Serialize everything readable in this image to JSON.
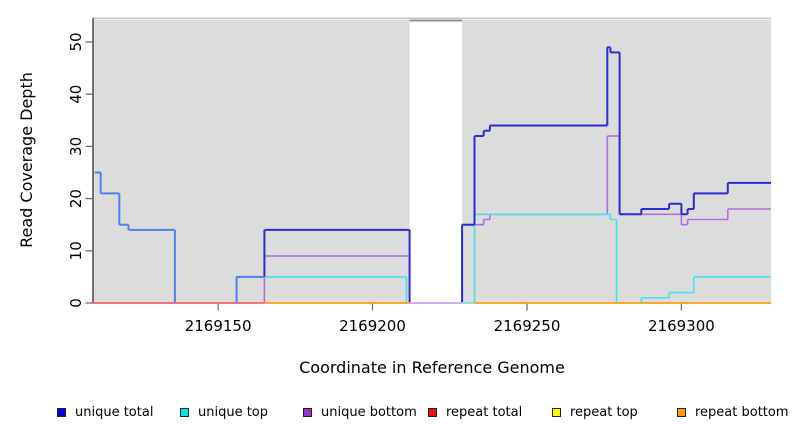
{
  "chart_data": {
    "type": "line",
    "subtype": "step-coverage",
    "title": "",
    "xlabel": "Coordinate in Reference Genome",
    "ylabel": "Read Coverage Depth",
    "x_domain": [
      2169109.5,
      2169329
    ],
    "y_domain": [
      0,
      54.5
    ],
    "x_ticks": [
      2169150,
      2169200,
      2169250,
      2169300
    ],
    "y_ticks": [
      0,
      10,
      20,
      30,
      40,
      50
    ],
    "grid": false,
    "legend_position": "bottom",
    "panel_background": "#dcdcdc",
    "masked_region": {
      "from": 2169212,
      "to": 2169229
    },
    "overlap_blend_color": "#527ff0",
    "series": [
      {
        "name": "unique total",
        "color": "#2b2bd5",
        "legend_color": "#0000ee",
        "points": [
          [
            2169110,
            25
          ],
          [
            2169112,
            21
          ],
          [
            2169118,
            15
          ],
          [
            2169121,
            14
          ],
          [
            2169136,
            0
          ],
          [
            2169156,
            5
          ],
          [
            2169165,
            14
          ],
          [
            2169212,
            0
          ],
          [
            2169229,
            15
          ],
          [
            2169233,
            32
          ],
          [
            2169236,
            33
          ],
          [
            2169238,
            34
          ],
          [
            2169276,
            49
          ],
          [
            2169277,
            48
          ],
          [
            2169280,
            17
          ],
          [
            2169287,
            18
          ],
          [
            2169296,
            19
          ],
          [
            2169300,
            17
          ],
          [
            2169302,
            18
          ],
          [
            2169304,
            21
          ],
          [
            2169315,
            23
          ]
        ]
      },
      {
        "name": "unique top",
        "color": "#4ae2e8",
        "legend_color": "#00e5ee",
        "points": [
          [
            2169110,
            25
          ],
          [
            2169112,
            21
          ],
          [
            2169118,
            15
          ],
          [
            2169121,
            14
          ],
          [
            2169136,
            0
          ],
          [
            2169156,
            5
          ],
          [
            2169211,
            0
          ],
          [
            2169233,
            17
          ],
          [
            2169277,
            16
          ],
          [
            2169279,
            0
          ],
          [
            2169287,
            1
          ],
          [
            2169296,
            2
          ],
          [
            2169304,
            5
          ]
        ]
      },
      {
        "name": "unique bottom",
        "color": "#b26fd9",
        "legend_color": "#9932cc",
        "points": [
          [
            2169110,
            0
          ],
          [
            2169165,
            9
          ],
          [
            2169212,
            0
          ],
          [
            2169229,
            15
          ],
          [
            2169236,
            16
          ],
          [
            2169238,
            17
          ],
          [
            2169276,
            32
          ],
          [
            2169280,
            17
          ],
          [
            2169300,
            15
          ],
          [
            2169302,
            16
          ],
          [
            2169315,
            18
          ]
        ]
      },
      {
        "name": "repeat total",
        "color": "#ef6270",
        "legend_color": "#ee1111",
        "points": [
          [
            2169110,
            0
          ]
        ]
      },
      {
        "name": "repeat top",
        "color": "#ffff00",
        "legend_color": "#ffff00",
        "points": [
          [
            2169110,
            0
          ]
        ]
      },
      {
        "name": "repeat bottom",
        "color": "#ff9d1c",
        "legend_color": "#ff9d00",
        "points": [
          [
            2169165,
            0
          ]
        ]
      }
    ],
    "baseline_visible_segments": [
      {
        "from": 2169109.5,
        "to": 2169165,
        "color": "#ef6270"
      },
      {
        "from": 2169165,
        "to": 2169212,
        "color": "#ff9d1c"
      },
      {
        "from": 2169212,
        "to": 2169229,
        "color": "#c9a3e6"
      },
      {
        "from": 2169229,
        "to": 2169233,
        "color": "#86e0cc"
      },
      {
        "from": 2169233,
        "to": 2169329,
        "color": "#ff9d1c"
      }
    ]
  },
  "legend": {
    "items": [
      {
        "label": "unique total"
      },
      {
        "label": "unique top"
      },
      {
        "label": "unique bottom"
      },
      {
        "label": "repeat total"
      },
      {
        "label": "repeat top"
      },
      {
        "label": "repeat bottom"
      }
    ]
  }
}
